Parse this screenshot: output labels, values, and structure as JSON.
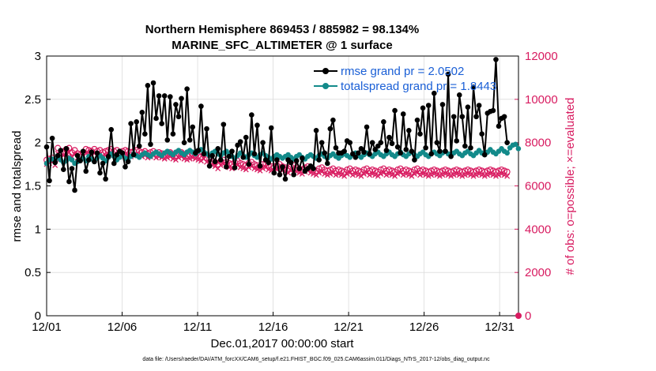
{
  "chart_data": {
    "type": "line",
    "title": "Northern Hemisphere 869453 / 885982 = 98.134%",
    "subtitle": "MARINE_SFC_ALTIMETER @ 1 surface",
    "xlabel": "Dec.01,2017 00:00:00 start",
    "ylabel": "rmse and totalspread",
    "ylabel_right": "# of obs: o=possible; ×=evaluated",
    "footnote": "data file: /Users/raeder/DAI/ATM_forcXX/CAM6_setup/f.e21.FHIST_BGC.f09_025.CAM6assim.011/Diags_NTrS_2017-12/obs_diag_output.nc",
    "x_tick_labels": [
      "12/01",
      "12/06",
      "12/11",
      "12/16",
      "12/21",
      "12/26",
      "12/31"
    ],
    "x_tick_days": [
      0,
      5,
      10,
      15,
      20,
      25,
      30
    ],
    "xlim": [
      0,
      31.25
    ],
    "ylim": [
      0,
      3
    ],
    "y_ticks": [
      "0",
      "0.5",
      "1",
      "1.5",
      "2",
      "2.5",
      "3"
    ],
    "ylim_right": [
      0,
      12000
    ],
    "y_ticks_right": [
      "0",
      "2000",
      "4000",
      "6000",
      "8000",
      "10000",
      "12000"
    ],
    "grid": true,
    "legend_position": "top-right",
    "colors": {
      "rmse": "#000000",
      "spread": "#138a8a",
      "obs": "#d81b60",
      "legend_text": "#1a5fd6"
    },
    "series": [
      {
        "name": "rmse grand pr = 2.0502",
        "axis": "left",
        "values": [
          1.95,
          1.56,
          2.05,
          1.77,
          1.85,
          1.91,
          1.69,
          1.93,
          1.55,
          1.7,
          1.45,
          1.85,
          1.79,
          1.9,
          1.67,
          1.8,
          1.89,
          1.78,
          1.88,
          1.65,
          1.76,
          1.58,
          1.84,
          2.15,
          1.76,
          1.86,
          1.9,
          1.88,
          1.72,
          1.78,
          2.22,
          1.86,
          2.24,
          1.96,
          2.35,
          2.1,
          2.66,
          1.98,
          2.69,
          2.28,
          2.54,
          2.22,
          2.54,
          2.03,
          2.53,
          2.1,
          2.44,
          2.3,
          2.51,
          2.0,
          2.62,
          2.03,
          2.18,
          1.88,
          1.91,
          2.42,
          1.87,
          2.16,
          1.73,
          1.85,
          1.78,
          1.93,
          1.8,
          2.21,
          1.72,
          1.84,
          1.9,
          1.71,
          1.97,
          2.01,
          1.83,
          2.06,
          1.75,
          2.32,
          1.87,
          2.2,
          1.73,
          2.0,
          1.8,
          1.77,
          2.17,
          1.65,
          1.8,
          1.63,
          1.72,
          1.58,
          1.8,
          1.77,
          1.63,
          1.79,
          1.7,
          1.82,
          1.67,
          1.7,
          1.73,
          1.7,
          2.14,
          1.8,
          2.0,
          1.88,
          1.76,
          2.16,
          2.26,
          1.94,
          1.88,
          1.88,
          1.9,
          2.02,
          2.0,
          1.87,
          1.83,
          1.88,
          1.93,
          1.89,
          2.18,
          1.87,
          2.0,
          1.92,
          1.96,
          2.0,
          2.24,
          1.91,
          2.06,
          1.99,
          2.37,
          1.95,
          1.88,
          2.33,
          1.92,
          2.14,
          1.9,
          1.8,
          2.26,
          2.1,
          2.4,
          1.94,
          2.43,
          1.87,
          2.57,
          2.0,
          1.9,
          2.44,
          1.9,
          2.79,
          1.84,
          2.3,
          2.02,
          2.55,
          2.3,
          1.96,
          2.41,
          1.94,
          2.64,
          2.3,
          2.43,
          2.1,
          1.86,
          2.34,
          2.36,
          2.37,
          2.96,
          2.19,
          2.28,
          2.3,
          2.0
        ]
      },
      {
        "name": "totalspread grand pr = 1.8443",
        "axis": "left",
        "values": [
          1.76,
          1.8,
          1.81,
          1.79,
          1.83,
          1.8,
          1.77,
          1.79,
          1.82,
          1.8,
          1.76,
          1.78,
          1.8,
          1.82,
          1.79,
          1.84,
          1.81,
          1.78,
          1.82,
          1.85,
          1.82,
          1.79,
          1.83,
          1.87,
          1.84,
          1.8,
          1.83,
          1.86,
          1.82,
          1.79,
          1.84,
          1.87,
          1.85,
          1.83,
          1.86,
          1.88,
          1.86,
          1.84,
          1.87,
          1.89,
          1.87,
          1.85,
          1.88,
          1.9,
          1.88,
          1.86,
          1.89,
          1.91,
          1.88,
          1.86,
          1.89,
          1.91,
          1.89,
          1.87,
          1.9,
          1.92,
          1.89,
          1.87,
          1.85,
          1.88,
          1.9,
          1.87,
          1.85,
          1.88,
          1.9,
          1.87,
          1.84,
          1.82,
          1.85,
          1.88,
          1.85,
          1.83,
          1.86,
          1.88,
          1.85,
          1.83,
          1.86,
          1.88,
          1.85,
          1.83,
          1.81,
          1.84,
          1.86,
          1.84,
          1.82,
          1.84,
          1.86,
          1.83,
          1.81,
          1.84,
          1.86,
          1.83,
          1.81,
          1.84,
          1.86,
          1.84,
          1.82,
          1.85,
          1.87,
          1.84,
          1.82,
          1.85,
          1.87,
          1.84,
          1.82,
          1.85,
          1.87,
          1.85,
          1.83,
          1.86,
          1.88,
          1.85,
          1.83,
          1.86,
          1.88,
          1.86,
          1.84,
          1.87,
          1.89,
          1.86,
          1.84,
          1.87,
          1.89,
          1.86,
          1.84,
          1.87,
          1.89,
          1.86,
          1.84,
          1.87,
          1.89,
          1.86,
          1.84,
          1.87,
          1.89,
          1.86,
          1.84,
          1.87,
          1.89,
          1.87,
          1.85,
          1.88,
          1.9,
          1.87,
          1.85,
          1.88,
          1.9,
          1.87,
          1.85,
          1.88,
          1.9,
          1.87,
          1.85,
          1.88,
          1.91,
          1.88,
          1.86,
          1.89,
          1.92,
          1.89,
          1.87,
          1.9,
          1.93,
          1.9,
          1.88,
          1.94,
          1.97,
          1.98,
          1.93
        ]
      },
      {
        "name": "obs possible",
        "axis": "right",
        "marker": "circle",
        "values": [
          7200,
          7250,
          7300,
          7150,
          7750,
          7500,
          7600,
          7700,
          7750,
          7550,
          7650,
          7500,
          7450,
          7550,
          7700,
          7650,
          7600,
          7700,
          7600,
          7650,
          7550,
          7600,
          7650,
          7700,
          7600,
          7650,
          7550,
          7600,
          7650,
          7600,
          7550,
          7600,
          7650,
          7600,
          7550,
          7600,
          7500,
          7550,
          7600,
          7500,
          7550,
          7500,
          7450,
          7500,
          7550,
          7450,
          7400,
          7500,
          7550,
          7450,
          7400,
          7450,
          7500,
          7450,
          7400,
          7350,
          7450,
          7300,
          7250,
          7150,
          7100,
          7000,
          7150,
          7200,
          7100,
          7050,
          7000,
          7100,
          7150,
          7050,
          7000,
          6950,
          7050,
          7100,
          7000,
          6950,
          6900,
          7000,
          7050,
          6950,
          6900,
          6850,
          6950,
          7000,
          6900,
          6850,
          6800,
          6900,
          6950,
          6850,
          6800,
          6750,
          6850,
          6900,
          6800,
          6750,
          6700,
          6800,
          6850,
          6750,
          6700,
          6750,
          6800,
          6700,
          6750,
          6700,
          6650,
          6750,
          6800,
          6700,
          6750,
          6700,
          6650,
          6750,
          6800,
          6700,
          6750,
          6700,
          6650,
          6750,
          6800,
          6700,
          6750,
          6700,
          6650,
          6750,
          6800,
          6700,
          6750,
          6700,
          6650,
          6750,
          6800,
          6700,
          6750,
          6700,
          6650,
          6700,
          6750,
          6700,
          6650,
          6700,
          6750,
          6700,
          6650,
          6700,
          6750,
          6700,
          6650,
          6700,
          6750,
          6700,
          6650,
          6700,
          6750,
          6700,
          6650,
          6700,
          6750,
          6700,
          6650,
          6700,
          6750,
          6700,
          6650
        ]
      },
      {
        "name": "obs evaluated",
        "axis": "right",
        "marker": "x",
        "values": [
          7000,
          7050,
          7100,
          6950,
          7500,
          7300,
          7400,
          7500,
          7550,
          7350,
          7450,
          7300,
          7250,
          7350,
          7500,
          7450,
          7400,
          7500,
          7400,
          7450,
          7350,
          7400,
          7450,
          7500,
          7400,
          7450,
          7350,
          7400,
          7450,
          7400,
          7350,
          7400,
          7450,
          7400,
          7350,
          7400,
          7300,
          7350,
          7400,
          7300,
          7350,
          7300,
          7250,
          7300,
          7350,
          7250,
          7200,
          7300,
          7350,
          7250,
          7200,
          7250,
          7300,
          7250,
          7200,
          7150,
          7250,
          7100,
          7050,
          6950,
          6900,
          6800,
          6950,
          7000,
          6900,
          6850,
          6800,
          6900,
          6950,
          6850,
          6800,
          6750,
          6850,
          6900,
          6800,
          6750,
          6700,
          6800,
          6850,
          6750,
          6700,
          6650,
          6750,
          6800,
          6700,
          6650,
          6600,
          6700,
          6750,
          6650,
          6600,
          6550,
          6650,
          6700,
          6600,
          6550,
          6500,
          6600,
          6650,
          6550,
          6500,
          6550,
          6600,
          6500,
          6550,
          6500,
          6450,
          6550,
          6600,
          6500,
          6550,
          6500,
          6450,
          6550,
          6600,
          6500,
          6550,
          6500,
          6450,
          6550,
          6600,
          6500,
          6550,
          6500,
          6450,
          6550,
          6600,
          6500,
          6550,
          6500,
          6450,
          6550,
          6600,
          6500,
          6550,
          6500,
          6450,
          6500,
          6550,
          6500,
          6450,
          6500,
          6550,
          6500,
          6450,
          6500,
          6550,
          6500,
          6450,
          6500,
          6550,
          6500,
          6450,
          6500,
          6550,
          6500,
          6450,
          6500,
          6550,
          6500,
          6450,
          6500,
          6550,
          6500,
          6450
        ]
      }
    ],
    "extra_point": {
      "x_day": 31.25,
      "value_right": 0,
      "label": "zero-count marker"
    }
  }
}
